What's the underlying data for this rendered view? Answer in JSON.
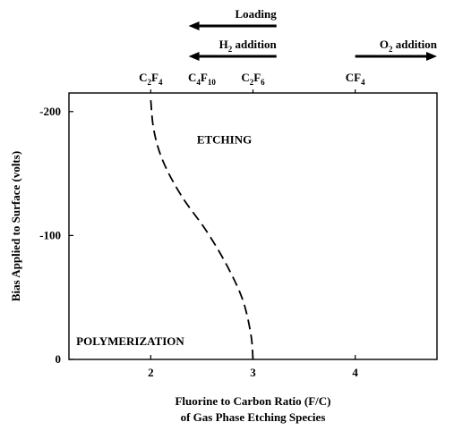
{
  "chart_data": {
    "type": "line",
    "title": "",
    "xlabel_line1": "Fluorine to Carbon Ratio (F/C)",
    "xlabel_line2": "of Gas Phase Etching Species",
    "ylabel": "Bias Applied to Surface (volts)",
    "xlim": [
      1.2,
      4.8
    ],
    "ylim": [
      0,
      -215
    ],
    "x_ticks": [
      2,
      3,
      4
    ],
    "x_tick_labels": [
      "2",
      "3",
      "4"
    ],
    "y_ticks": [
      0,
      -100,
      -200
    ],
    "y_tick_labels": [
      "0",
      "-100",
      "-200"
    ],
    "grid": false,
    "series": [
      {
        "style": "dashed",
        "points": [
          {
            "x": 3.0,
            "y": 0
          },
          {
            "x": 2.98,
            "y": -20
          },
          {
            "x": 2.9,
            "y": -48
          },
          {
            "x": 2.75,
            "y": -75
          },
          {
            "x": 2.55,
            "y": -103
          },
          {
            "x": 2.3,
            "y": -132
          },
          {
            "x": 2.12,
            "y": -160
          },
          {
            "x": 2.03,
            "y": -185
          },
          {
            "x": 2.0,
            "y": -210
          }
        ]
      }
    ],
    "region_labels": [
      {
        "text": "ETCHING",
        "x": 2.72,
        "y": -178
      },
      {
        "text": "POLYMERIZATION",
        "x": 1.8,
        "y": -15
      }
    ],
    "species": [
      {
        "x": 2.0,
        "base": "C",
        "s1": "2",
        "mid": "F",
        "s2": "4"
      },
      {
        "x": 2.5,
        "base": "C",
        "s1": "4",
        "mid": "F",
        "s2": "10"
      },
      {
        "x": 3.0,
        "base": "C",
        "s1": "2",
        "mid": "F",
        "s2": "6"
      },
      {
        "x": 4.0,
        "base": "CF",
        "s1": "4",
        "mid": "",
        "s2": ""
      }
    ],
    "arrows": [
      {
        "id": "loading",
        "label": "Loading",
        "direction": "left",
        "x_from": 3.23,
        "x_to": 2.37
      },
      {
        "id": "h2",
        "label_main": "H",
        "label_sub": "2",
        "label_rest": " addition",
        "direction": "left",
        "x_from": 3.23,
        "x_to": 2.37
      },
      {
        "id": "o2",
        "label_main": "O",
        "label_sub": "2",
        "label_rest": " addition",
        "direction": "right",
        "x_from": 4.0,
        "x_to": 4.8
      }
    ]
  }
}
